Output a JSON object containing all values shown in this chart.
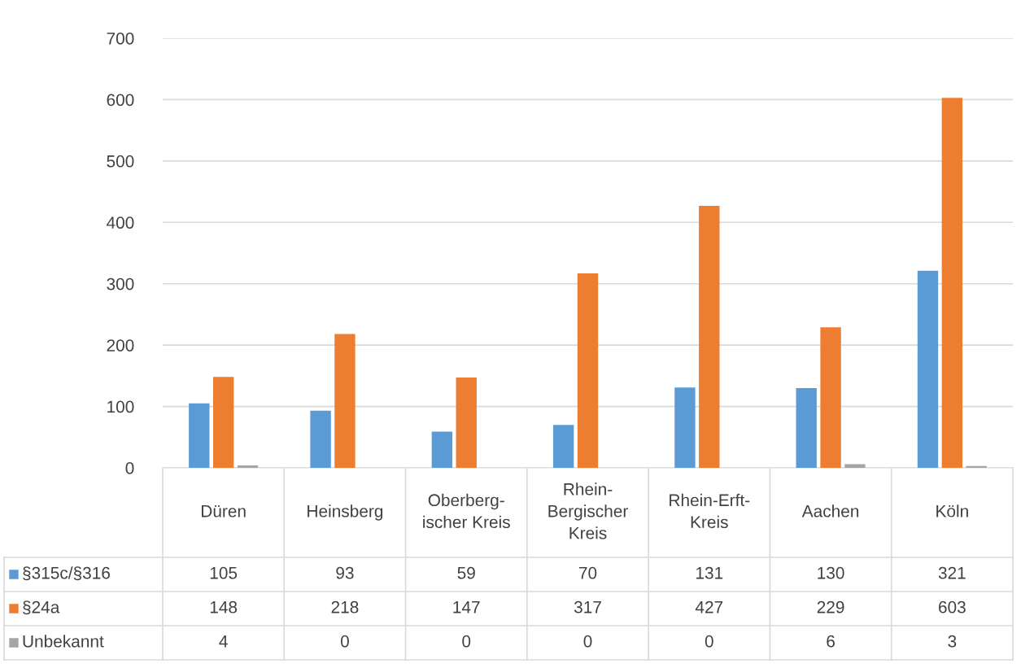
{
  "chart_data": {
    "type": "bar",
    "categories": [
      "Düren",
      "Heinsberg",
      "Oberberg-\nischer Kreis",
      "Rhein-\nBergischer\nKreis",
      "Rhein-Erft-\nKreis",
      "Aachen",
      "Köln"
    ],
    "series": [
      {
        "name": "§315c/§316",
        "color": "#5b9bd5",
        "values": [
          105,
          93,
          59,
          70,
          131,
          130,
          321
        ]
      },
      {
        "name": "§24a",
        "color": "#ed7d31",
        "values": [
          148,
          218,
          147,
          317,
          427,
          229,
          603
        ]
      },
      {
        "name": "Unbekannt",
        "color": "#a5a5a5",
        "values": [
          4,
          0,
          0,
          0,
          0,
          6,
          3
        ]
      }
    ],
    "ylim": [
      0,
      700
    ],
    "yticks": [
      0,
      100,
      200,
      300,
      400,
      500,
      600,
      700
    ],
    "grid": "y",
    "data_labels": true,
    "legend": "bottom left"
  }
}
